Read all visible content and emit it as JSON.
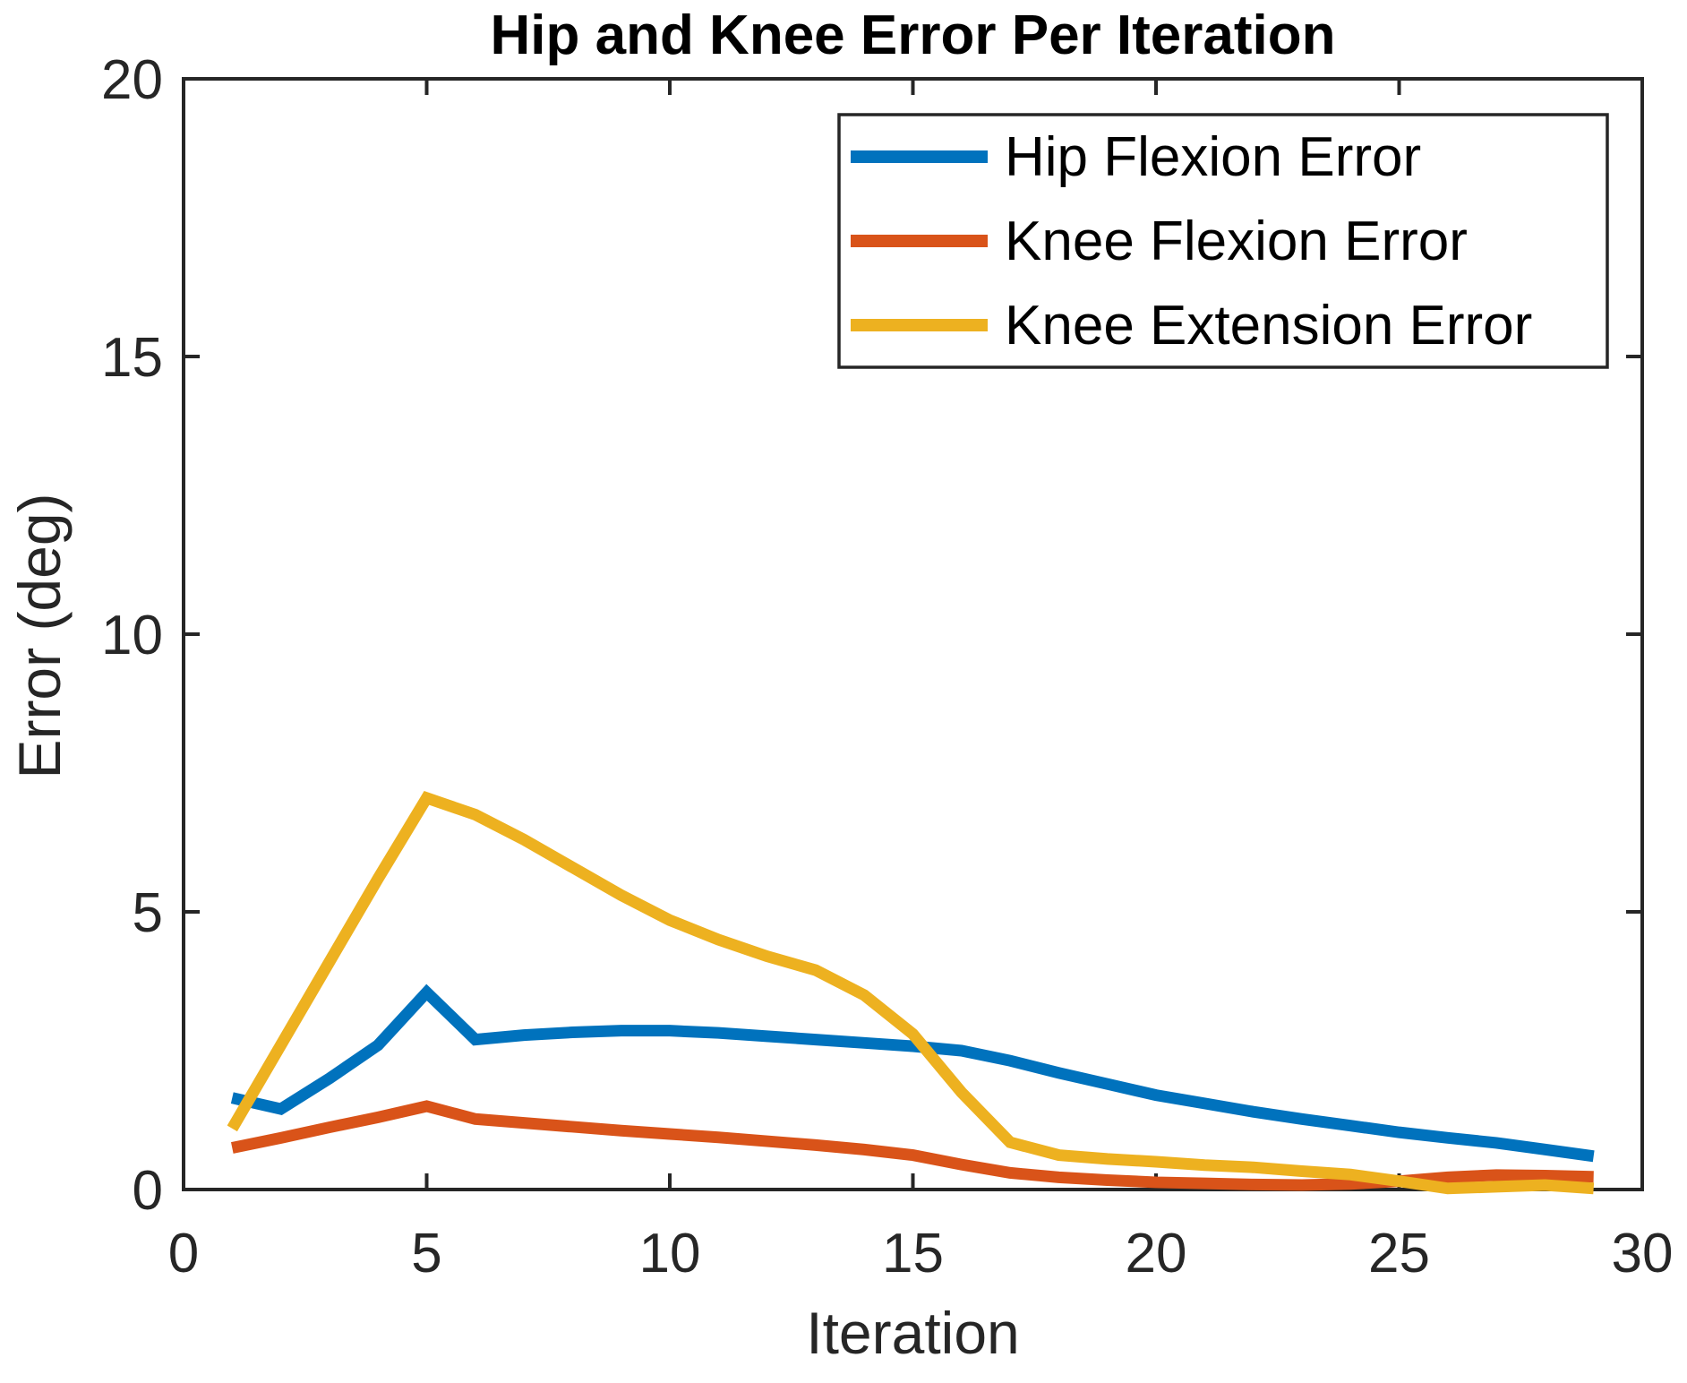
{
  "chart_data": {
    "type": "line",
    "title": "Hip and Knee Error Per Iteration",
    "xlabel": "Iteration",
    "ylabel": "Error (deg)",
    "xlim": [
      0,
      30
    ],
    "ylim": [
      0,
      20
    ],
    "xticks": [
      0,
      5,
      10,
      15,
      20,
      25,
      30
    ],
    "yticks": [
      0,
      5,
      10,
      15,
      20
    ],
    "grid": false,
    "legend_position": "northeast",
    "axis_color": "#262626",
    "x": [
      1,
      2,
      3,
      4,
      5,
      6,
      7,
      8,
      9,
      10,
      11,
      12,
      13,
      14,
      15,
      16,
      17,
      18,
      19,
      20,
      21,
      22,
      23,
      24,
      25,
      26,
      27,
      28,
      29
    ],
    "series": [
      {
        "name": "Hip Flexion Error",
        "color": "#0072BD",
        "values": [
          1.65,
          1.45,
          2.0,
          2.6,
          3.55,
          2.7,
          2.78,
          2.83,
          2.86,
          2.86,
          2.82,
          2.76,
          2.7,
          2.64,
          2.58,
          2.5,
          2.32,
          2.1,
          1.9,
          1.7,
          1.55,
          1.4,
          1.27,
          1.15,
          1.03,
          0.93,
          0.84,
          0.72,
          0.6
        ]
      },
      {
        "name": "Knee Flexion Error",
        "color": "#D95319",
        "values": [
          0.75,
          0.93,
          1.12,
          1.3,
          1.5,
          1.27,
          1.2,
          1.13,
          1.06,
          1.0,
          0.94,
          0.87,
          0.8,
          0.72,
          0.62,
          0.45,
          0.3,
          0.22,
          0.17,
          0.13,
          0.11,
          0.09,
          0.08,
          0.1,
          0.15,
          0.22,
          0.26,
          0.25,
          0.23
        ]
      },
      {
        "name": "Knee Extension Error",
        "color": "#EDB120",
        "values": [
          1.1,
          2.6,
          4.1,
          5.6,
          7.05,
          6.75,
          6.3,
          5.8,
          5.3,
          4.85,
          4.5,
          4.2,
          3.95,
          3.5,
          2.8,
          1.75,
          0.85,
          0.62,
          0.55,
          0.5,
          0.44,
          0.4,
          0.33,
          0.27,
          0.15,
          0.02,
          0.05,
          0.08,
          0.02
        ]
      }
    ]
  }
}
